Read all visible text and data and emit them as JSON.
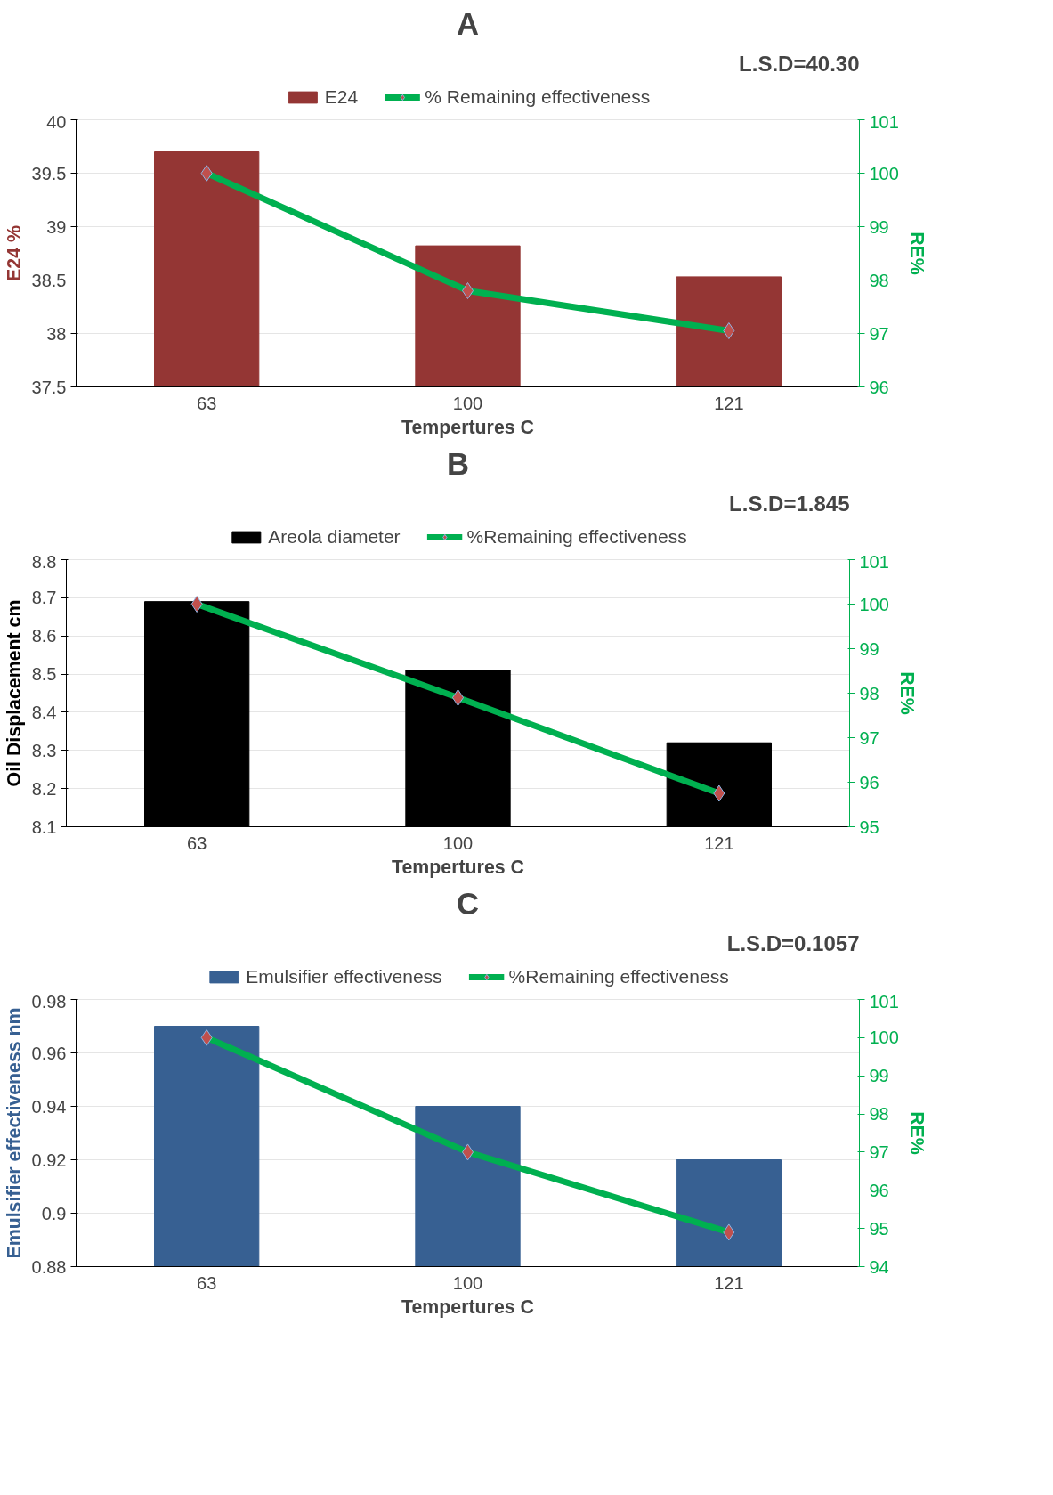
{
  "chart_data": [
    {
      "type": "bar",
      "title": "A",
      "annotations": [
        "L.S.D=40.30"
      ],
      "xlabel": "Tempertures C",
      "ylabel": "E24 %",
      "y2label": "RE%",
      "categories": [
        "63",
        "100",
        "121"
      ],
      "ylim": [
        37.5,
        40
      ],
      "yticks": [
        37.5,
        38,
        38.5,
        39,
        39.5,
        40
      ],
      "y2lim": [
        96,
        101
      ],
      "y2ticks": [
        96,
        97,
        98,
        99,
        100,
        101
      ],
      "grid": "y",
      "legend": "top",
      "marker": "diamond",
      "series": [
        {
          "name": "E24",
          "color": "#943634",
          "values": [
            39.7,
            38.82,
            38.53
          ]
        },
        {
          "name": "% Remaining effectiveness",
          "type": "line",
          "axis": "y2",
          "color": "#00b050",
          "values": [
            100,
            97.8,
            97.05
          ]
        }
      ]
    },
    {
      "type": "bar",
      "title": "B",
      "annotations": [
        "L.S.D=1.845"
      ],
      "xlabel": "Tempertures C",
      "ylabel": "Oil Displacement cm",
      "y2label": "RE%",
      "categories": [
        "63",
        "100",
        "121"
      ],
      "ylim": [
        8.1,
        8.8
      ],
      "yticks": [
        8.1,
        8.2,
        8.3,
        8.4,
        8.5,
        8.6,
        8.7,
        8.8
      ],
      "y2lim": [
        95,
        101
      ],
      "y2ticks": [
        95,
        96,
        97,
        98,
        99,
        100,
        101
      ],
      "grid": "y",
      "legend": "top",
      "marker": "diamond",
      "series": [
        {
          "name": "Areola diameter",
          "color": "#000000",
          "values": [
            8.69,
            8.51,
            8.32
          ]
        },
        {
          "name": "%Remaining effectiveness",
          "type": "line",
          "axis": "y2",
          "color": "#00b050",
          "values": [
            100,
            97.9,
            95.75
          ]
        }
      ]
    },
    {
      "type": "bar",
      "title": "C",
      "annotations": [
        "L.S.D=0.1057"
      ],
      "xlabel": "Tempertures C",
      "ylabel": "Emulsifier effectiveness nm",
      "y2label": "RE%",
      "categories": [
        "63",
        "100",
        "121"
      ],
      "ylim": [
        0.88,
        0.98
      ],
      "yticks": [
        0.88,
        0.9,
        0.92,
        0.94,
        0.96,
        0.98
      ],
      "y2lim": [
        94,
        101
      ],
      "y2ticks": [
        94,
        95,
        96,
        97,
        98,
        99,
        100,
        101
      ],
      "grid": "y",
      "legend": "top",
      "marker": "diamond",
      "series": [
        {
          "name": "Emulsifier effectiveness",
          "color": "#376092",
          "values": [
            0.97,
            0.94,
            0.92
          ]
        },
        {
          "name": "%Remaining effectiveness",
          "type": "line",
          "axis": "y2",
          "color": "#00b050",
          "values": [
            100,
            97,
            94.9
          ]
        }
      ]
    }
  ]
}
